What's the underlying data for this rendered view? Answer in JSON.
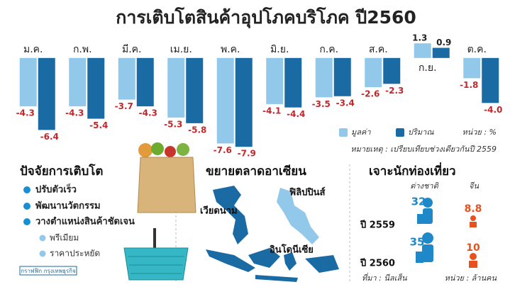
{
  "chart_data": {
    "type": "bar",
    "title": "การเติบโตสินค้าอุปโภคบริโภค ปี2560",
    "categories": [
      "ม.ค.",
      "ก.พ.",
      "มี.ค.",
      "เม.ย.",
      "พ.ค.",
      "มิ.ย.",
      "ก.ค.",
      "ส.ค.",
      "ก.ย.",
      "ต.ค."
    ],
    "series": [
      {
        "name": "มูลค่า",
        "color": "#92c9ea",
        "values": [
          -4.3,
          -4.3,
          -3.7,
          -5.3,
          -7.6,
          -4.1,
          -3.5,
          -2.6,
          1.3,
          -1.8
        ],
        "value_labels": [
          "-4.3",
          "-4.3",
          "-3.7",
          "-5.3",
          "-7.6",
          "-4.1",
          "-3.5",
          "-2.6",
          "1.3",
          "-1.8"
        ]
      },
      {
        "name": "ปริมาณ",
        "color": "#1a6aa3",
        "values": [
          -6.4,
          -5.4,
          -4.3,
          -5.8,
          -7.9,
          -4.4,
          -3.4,
          -2.3,
          0.9,
          -4.0
        ],
        "value_labels": [
          "-6.4",
          "-5.4",
          "-4.3",
          "-5.8",
          "-7.9",
          "-4.4",
          "-3.4",
          "-2.3",
          "0.9",
          "-4.0"
        ]
      }
    ],
    "ylim": [
      -8.2,
      1.5
    ],
    "unit": "หน่วย : %",
    "note": "หมายเหตุ : เปรียบเทียบช่วงเดียวกันปี 2559"
  },
  "factors": {
    "title": "ปัจจัยการเติบโต",
    "items": [
      "ปรับตัวเร็ว",
      "พัฒนานวัตกรรม",
      "วางตำแหน่งสินค้าชัดเจน"
    ],
    "subitems": [
      "พรีเมียม",
      "ราคาประหยัด"
    ],
    "credit": "กราฟฟิก กรุงเทพธุรกิจ"
  },
  "asean": {
    "title": "ขยายตลาดอาเซียน",
    "countries": [
      "ฟิลิปปินส์",
      "เวียดนาม",
      "อินโดนีเซีย"
    ]
  },
  "tourists": {
    "title": "เจาะนักท่องเที่ยว",
    "columns": [
      "ต่างชาติ",
      "จีน"
    ],
    "rows": [
      {
        "year": "ปี 2559",
        "values": [
          "32",
          "8.8"
        ]
      },
      {
        "year": "ปี 2560",
        "values": [
          "35",
          "10"
        ]
      }
    ],
    "source": "ที่มา : นีลเส็น",
    "unit": "หน่วย : ล้านคน"
  }
}
